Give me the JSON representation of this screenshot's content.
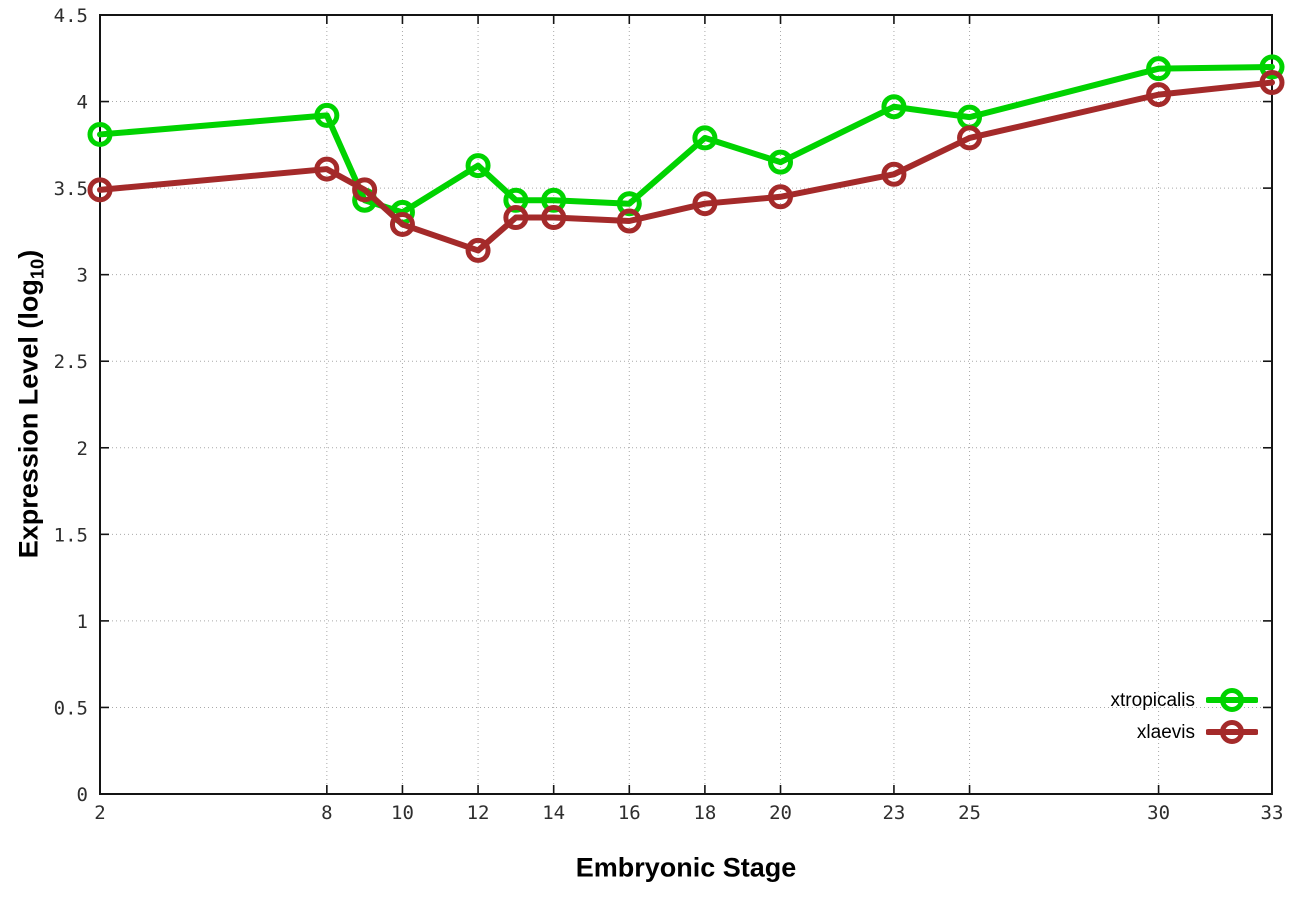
{
  "chart_data": {
    "type": "line",
    "title": "",
    "xlabel": "Embryonic Stage",
    "ylabel": "Expression Level (log10)",
    "ylabel_parts": {
      "prefix": "Expression Level (log",
      "subscript": "10",
      "suffix": ")"
    },
    "xlim": [
      2,
      33
    ],
    "ylim": [
      0,
      4.5
    ],
    "grid": true,
    "legend_position": "inside-bottom-right",
    "x_ticks": [
      2,
      8,
      10,
      12,
      14,
      16,
      18,
      20,
      23,
      25,
      30,
      33
    ],
    "y_ticks": [
      0,
      0.5,
      1,
      1.5,
      2,
      2.5,
      3,
      3.5,
      4,
      4.5
    ],
    "y_tick_labels": [
      "0",
      "0.5",
      "1",
      "1.5",
      "2",
      "2.5",
      "3",
      "3.5",
      "4",
      "4.5"
    ],
    "x": [
      2,
      8,
      9,
      10,
      12,
      13,
      14,
      16,
      18,
      20,
      23,
      25,
      30,
      33
    ],
    "series": [
      {
        "name": "xtropicalis",
        "color": "#00d300",
        "values": [
          3.81,
          3.92,
          3.43,
          3.36,
          3.63,
          3.43,
          3.43,
          3.41,
          3.79,
          3.65,
          3.97,
          3.91,
          4.19,
          4.2
        ]
      },
      {
        "name": "xlaevis",
        "color": "#a42a2a",
        "values": [
          3.49,
          3.61,
          3.49,
          3.29,
          3.14,
          3.33,
          3.33,
          3.31,
          3.41,
          3.45,
          3.58,
          3.79,
          4.04,
          4.11
        ]
      }
    ],
    "colors": {
      "background": "#ffffff",
      "grid": "#a9a9a9",
      "border": "#141414",
      "tick_text": "#2e2e2e"
    }
  }
}
